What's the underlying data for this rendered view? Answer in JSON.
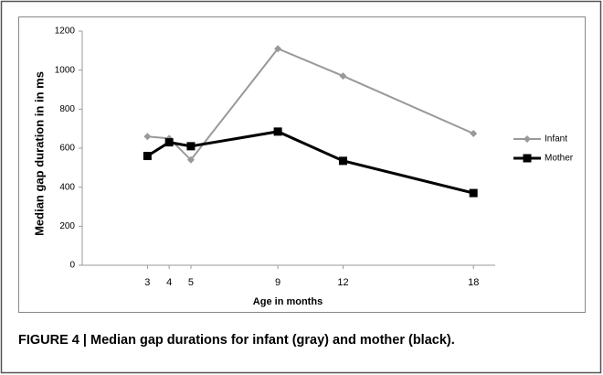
{
  "chart_data": {
    "type": "line",
    "x": [
      3,
      4,
      5,
      9,
      12,
      18
    ],
    "series": [
      {
        "name": "Infant",
        "color": "#999999",
        "marker": "diamond",
        "values": [
          660,
          650,
          540,
          1110,
          970,
          675
        ]
      },
      {
        "name": "Mother",
        "color": "#000000",
        "marker": "square",
        "values": [
          560,
          630,
          610,
          685,
          535,
          370
        ]
      }
    ],
    "xlabel": "Age in months",
    "ylabel": "Median gap duration in in ms",
    "xlim": [
      0,
      19
    ],
    "xticks": [
      3,
      4,
      5,
      9,
      12,
      18
    ],
    "ylim": [
      0,
      1200
    ],
    "yticks": [
      0,
      200,
      400,
      600,
      800,
      1000,
      1200
    ],
    "grid": false,
    "legend": "right"
  },
  "caption": "FIGURE 4 | Median gap durations for infant (gray) and mother (black)."
}
